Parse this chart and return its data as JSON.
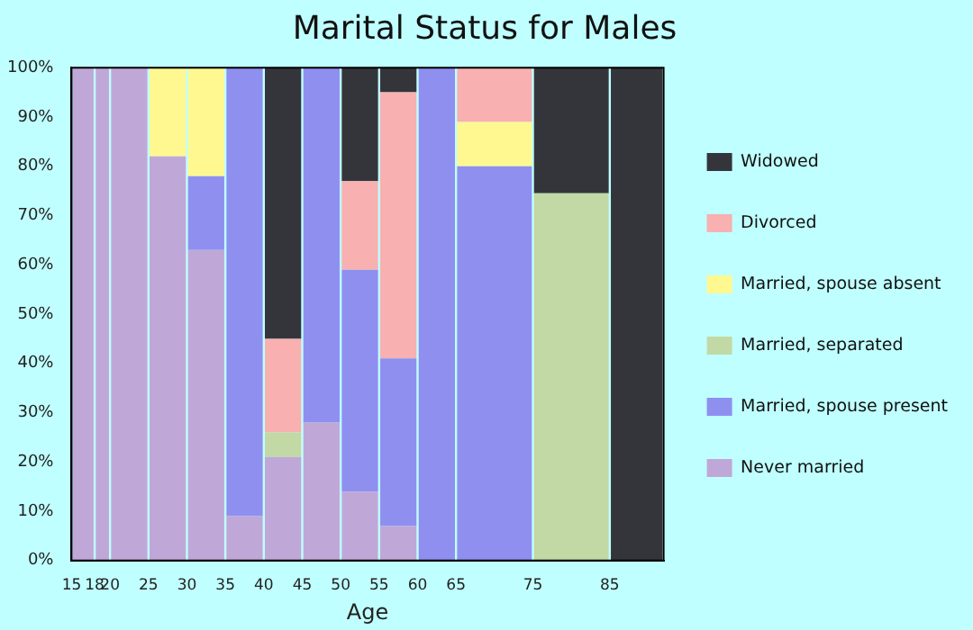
{
  "chart_data": {
    "type": "bar",
    "title": "Marital Status for Males",
    "xlabel": "Age",
    "stacked": true,
    "x": [
      16.5,
      19,
      22.5,
      27.5,
      32.5,
      37.5,
      42.5,
      47.5,
      52.5,
      57.5,
      62.5,
      70,
      80,
      88.5
    ],
    "xlim": [
      15,
      92
    ],
    "xticks": [
      15,
      18,
      20,
      25,
      30,
      35,
      40,
      45,
      50,
      55,
      60,
      65,
      75,
      85
    ],
    "ylim": [
      0,
      100
    ],
    "yticks": [
      {
        "value": 0,
        "label": "0%"
      },
      {
        "value": 10,
        "label": "10%"
      },
      {
        "value": 20,
        "label": "20%"
      },
      {
        "value": 30,
        "label": "30%"
      },
      {
        "value": 40,
        "label": "40%"
      },
      {
        "value": 50,
        "label": "50%"
      },
      {
        "value": 60,
        "label": "60%"
      },
      {
        "value": 70,
        "label": "70%"
      },
      {
        "value": 80,
        "label": "80%"
      },
      {
        "value": 90,
        "label": "90%"
      },
      {
        "value": 100,
        "label": "100%"
      }
    ],
    "grid": false,
    "legend": "right",
    "series": [
      {
        "name": "Never married",
        "color": "#bfa8d8",
        "values": [
          100,
          100,
          100,
          82,
          63,
          9,
          21,
          28,
          14,
          7,
          0,
          0,
          0,
          0
        ]
      },
      {
        "name": "Married, spouse present",
        "color": "#8f8ff0",
        "values": [
          0,
          0,
          0,
          0,
          15,
          91,
          0,
          72,
          45,
          34,
          100,
          80,
          0,
          0
        ]
      },
      {
        "name": "Married, separated",
        "color": "#c2d9a5",
        "values": [
          0,
          0,
          0,
          0,
          0,
          0,
          5,
          0,
          0,
          0,
          0,
          0,
          74.5,
          0
        ]
      },
      {
        "name": "Married, spouse absent",
        "color": "#fff890",
        "values": [
          0,
          0,
          0,
          18,
          22,
          0,
          0,
          0,
          0,
          0,
          0,
          9,
          0,
          0
        ]
      },
      {
        "name": "Divorced",
        "color": "#f8b0b0",
        "values": [
          0,
          0,
          0,
          0,
          0,
          0,
          19,
          0,
          18,
          54,
          0,
          11,
          0,
          0
        ]
      },
      {
        "name": "Widowed",
        "color": "#34353b",
        "values": [
          0,
          0,
          0,
          0,
          0,
          0,
          55,
          0,
          23,
          5,
          0,
          0,
          25.5,
          100
        ]
      }
    ]
  }
}
